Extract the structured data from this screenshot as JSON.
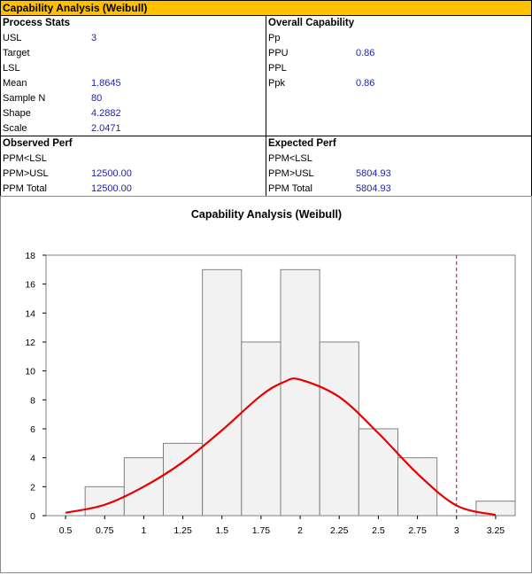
{
  "header": {
    "title": "Capability Analysis (Weibull)"
  },
  "process_stats": {
    "heading": "Process Stats",
    "rows": [
      {
        "label": "USL",
        "value": "3"
      },
      {
        "label": "Target",
        "value": ""
      },
      {
        "label": "LSL",
        "value": ""
      },
      {
        "label": "Mean",
        "value": "1.8645"
      },
      {
        "label": "Sample N",
        "value": "80"
      },
      {
        "label": "Shape",
        "value": "4.2882"
      },
      {
        "label": "Scale",
        "value": "2.0471"
      }
    ]
  },
  "overall_capability": {
    "heading": "Overall Capability",
    "rows": [
      {
        "label": "Pp",
        "value": ""
      },
      {
        "label": "PPU",
        "value": "0.86"
      },
      {
        "label": "PPL",
        "value": ""
      },
      {
        "label": "Ppk",
        "value": "0.86"
      }
    ]
  },
  "observed_perf": {
    "heading": "Observed Perf",
    "rows": [
      {
        "label": "PPM<LSL",
        "value": ""
      },
      {
        "label": "PPM>USL",
        "value": "12500.00"
      },
      {
        "label": "PPM Total",
        "value": "12500.00"
      }
    ]
  },
  "expected_perf": {
    "heading": "Expected Perf",
    "rows": [
      {
        "label": "PPM<LSL",
        "value": ""
      },
      {
        "label": "PPM>USL",
        "value": "5804.93"
      },
      {
        "label": "PPM Total",
        "value": "5804.93"
      }
    ]
  },
  "chart_data": {
    "type": "bar",
    "title": "Capability Analysis (Weibull)",
    "xlabel": "",
    "ylabel": "",
    "xlim": [
      0.375,
      3.375
    ],
    "ylim": [
      0,
      18
    ],
    "x_ticks": [
      "0.5",
      "0.75",
      "1",
      "1.25",
      "1.5",
      "1.75",
      "2",
      "2.25",
      "2.5",
      "2.75",
      "3",
      "3.25"
    ],
    "y_ticks": [
      "0",
      "2",
      "4",
      "6",
      "8",
      "10",
      "12",
      "14",
      "16",
      "18"
    ],
    "bin_width": 0.25,
    "bins": [
      {
        "center": 0.75,
        "count": 2
      },
      {
        "center": 1.0,
        "count": 4
      },
      {
        "center": 1.25,
        "count": 5
      },
      {
        "center": 1.5,
        "count": 17
      },
      {
        "center": 1.75,
        "count": 12
      },
      {
        "center": 2.0,
        "count": 17
      },
      {
        "center": 2.25,
        "count": 12
      },
      {
        "center": 2.5,
        "count": 6
      },
      {
        "center": 2.75,
        "count": 4
      },
      {
        "center": 3.25,
        "count": 1
      }
    ],
    "fit_curve": {
      "x": [
        0.5,
        0.75,
        1.0,
        1.25,
        1.5,
        1.75,
        1.9,
        2.0,
        2.25,
        2.5,
        2.75,
        3.0,
        3.25
      ],
      "y": [
        0.2,
        0.75,
        2.0,
        3.7,
        5.9,
        8.3,
        9.25,
        9.4,
        8.2,
        5.7,
        2.9,
        0.7,
        0.05
      ]
    },
    "usl": 3,
    "grid": false,
    "colors": {
      "bar_fill": "#f2f2f2",
      "bar_stroke": "#808080",
      "curve": "#e60000",
      "usl_line": "#d40000"
    }
  }
}
